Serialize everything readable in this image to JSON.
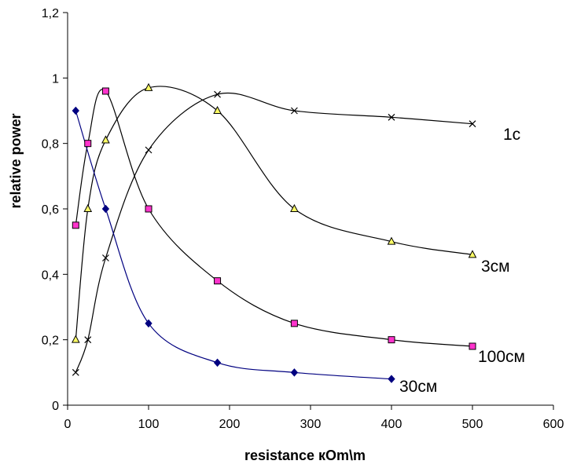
{
  "chart_data": {
    "type": "line",
    "xlabel": "resistance кOm\\m",
    "ylabel": "relative  power",
    "xlim": [
      0,
      600
    ],
    "ylim": [
      0,
      1.2
    ],
    "x_ticks": [
      0,
      100,
      200,
      300,
      400,
      500,
      600
    ],
    "y_ticks": [
      0,
      0.2,
      0.4,
      0.6,
      0.8,
      1,
      1.2
    ],
    "x_tick_labels": [
      "0",
      "100",
      "200",
      "300",
      "400",
      "500",
      "600"
    ],
    "y_tick_labels": [
      "0",
      "0,2",
      "0,4",
      "0,6",
      "0,8",
      "1",
      "1,2"
    ],
    "grid": false,
    "legend": "none",
    "series": [
      {
        "name": "1с",
        "marker": "x",
        "line_color": "#000000",
        "x": [
          10,
          25,
          47,
          100,
          185,
          280,
          400,
          500
        ],
        "y": [
          0.1,
          0.2,
          0.45,
          0.78,
          0.95,
          0.9,
          0.88,
          0.86
        ]
      },
      {
        "name": "3см",
        "marker": "triangle",
        "line_color": "#000000",
        "fill_color": "#ffff66",
        "x": [
          10,
          25,
          47,
          100,
          185,
          280,
          400,
          500
        ],
        "y": [
          0.2,
          0.6,
          0.81,
          0.97,
          0.9,
          0.6,
          0.5,
          0.46
        ]
      },
      {
        "name": "100см",
        "marker": "square",
        "line_color": "#000000",
        "fill_color": "#ff33cc",
        "x": [
          10,
          25,
          47,
          100,
          185,
          280,
          400,
          500
        ],
        "y": [
          0.55,
          0.8,
          0.96,
          0.6,
          0.38,
          0.25,
          0.2,
          0.18
        ]
      },
      {
        "name": "30см",
        "marker": "diamond",
        "line_color": "#000080",
        "fill_color": "#000080",
        "x": [
          10,
          47,
          100,
          185,
          280,
          400
        ],
        "y": [
          0.9,
          0.6,
          0.25,
          0.13,
          0.1,
          0.08
        ]
      }
    ]
  }
}
